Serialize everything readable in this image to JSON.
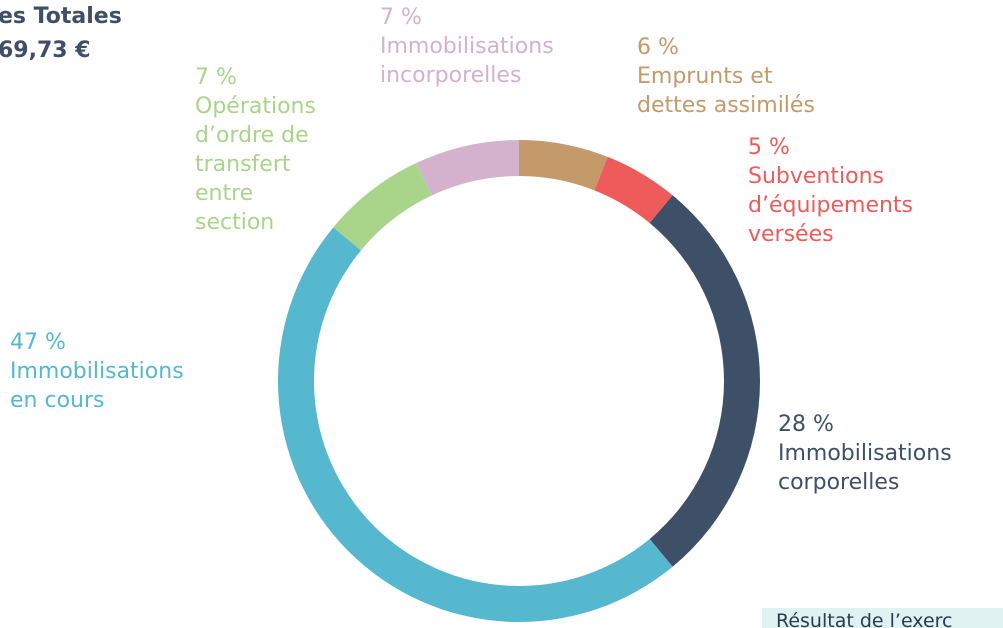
{
  "chart_data": {
    "type": "donut",
    "title_lines": [
      "es Totales",
      "69,73 €"
    ],
    "categories": [
      "Emprunts et\ndettes assimilés",
      "Subventions\nd’équipements\nversées",
      "Immobilisations\ncorporelles",
      "Immobilisations\nen cours",
      "Opérations\nd’ordre de\ntransfert\nentre\nsection",
      "Immobilisations\nincorporelles"
    ],
    "values": [
      6,
      5,
      28,
      47,
      7,
      7
    ],
    "value_labels": [
      "6 %",
      "5 %",
      "28 %",
      "47 %",
      "7 %",
      "7 %"
    ],
    "colors": [
      "#c49a6a",
      "#ef5b5b",
      "#3d5068",
      "#55b8cf",
      "#a8d58a",
      "#d4b1cc"
    ],
    "footer_text": "Résultat de l’exerc"
  }
}
